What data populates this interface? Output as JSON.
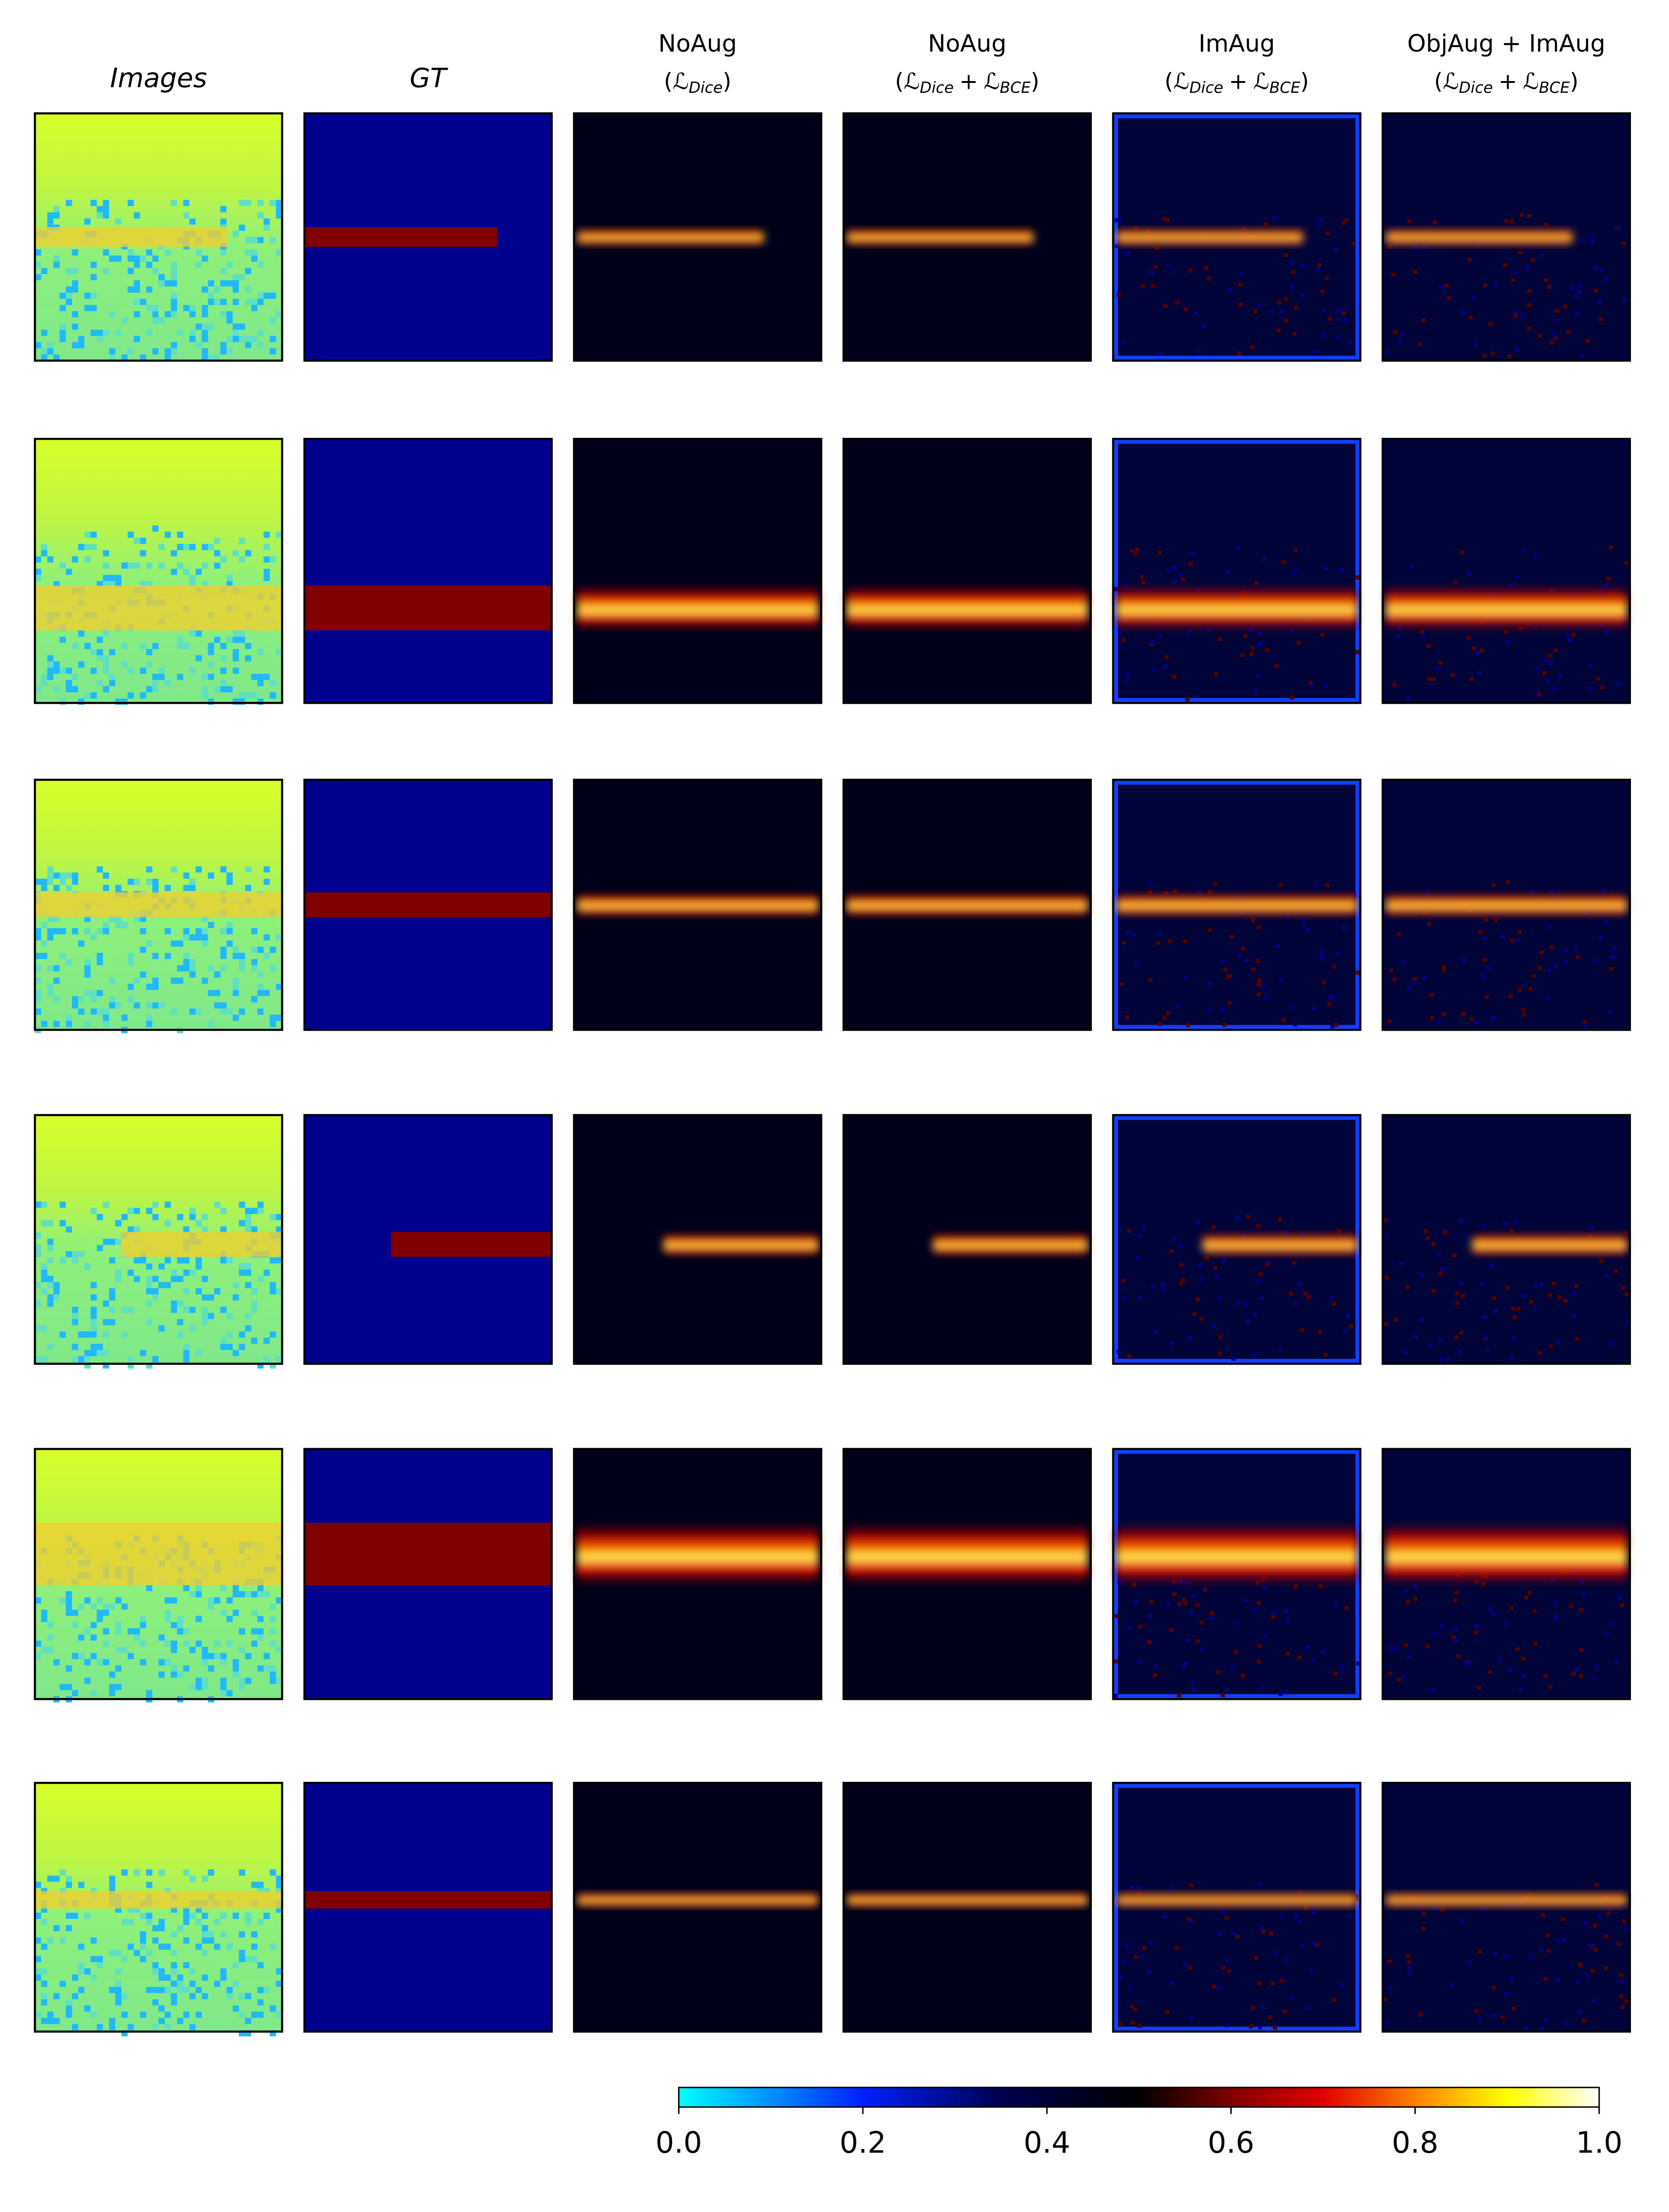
{
  "chart_data": {
    "type": "image-grid",
    "open": "(",
    "close": ")",
    "operator": "+",
    "columns": [
      {
        "title": "Images"
      },
      {
        "title": "GT"
      },
      {
        "title": "NoAug",
        "loss": [
          {
            "symbol": "ℒ",
            "sub": "Dice"
          }
        ]
      },
      {
        "title": "NoAug",
        "loss": [
          {
            "symbol": "ℒ",
            "sub": "Dice"
          },
          {
            "symbol": "ℒ",
            "sub": "BCE"
          }
        ]
      },
      {
        "title": "ImAug",
        "loss": [
          {
            "symbol": "ℒ",
            "sub": "Dice"
          },
          {
            "symbol": "ℒ",
            "sub": "BCE"
          }
        ]
      },
      {
        "title": "ObjAug + ImAug",
        "loss": [
          {
            "symbol": "ℒ",
            "sub": "Dice"
          },
          {
            "symbol": "ℒ",
            "sub": "BCE"
          }
        ]
      }
    ],
    "colorbar": {
      "lim": [
        0,
        1
      ],
      "ticks": [
        {
          "value": 0,
          "label": "0.0"
        },
        {
          "value": 0.2,
          "label": "0.2"
        },
        {
          "value": 0.4,
          "label": "0.4"
        },
        {
          "value": 0.6,
          "label": "0.6"
        },
        {
          "value": 0.8,
          "label": "0.8"
        },
        {
          "value": 1,
          "label": "1.0"
        }
      ]
    }
  }
}
